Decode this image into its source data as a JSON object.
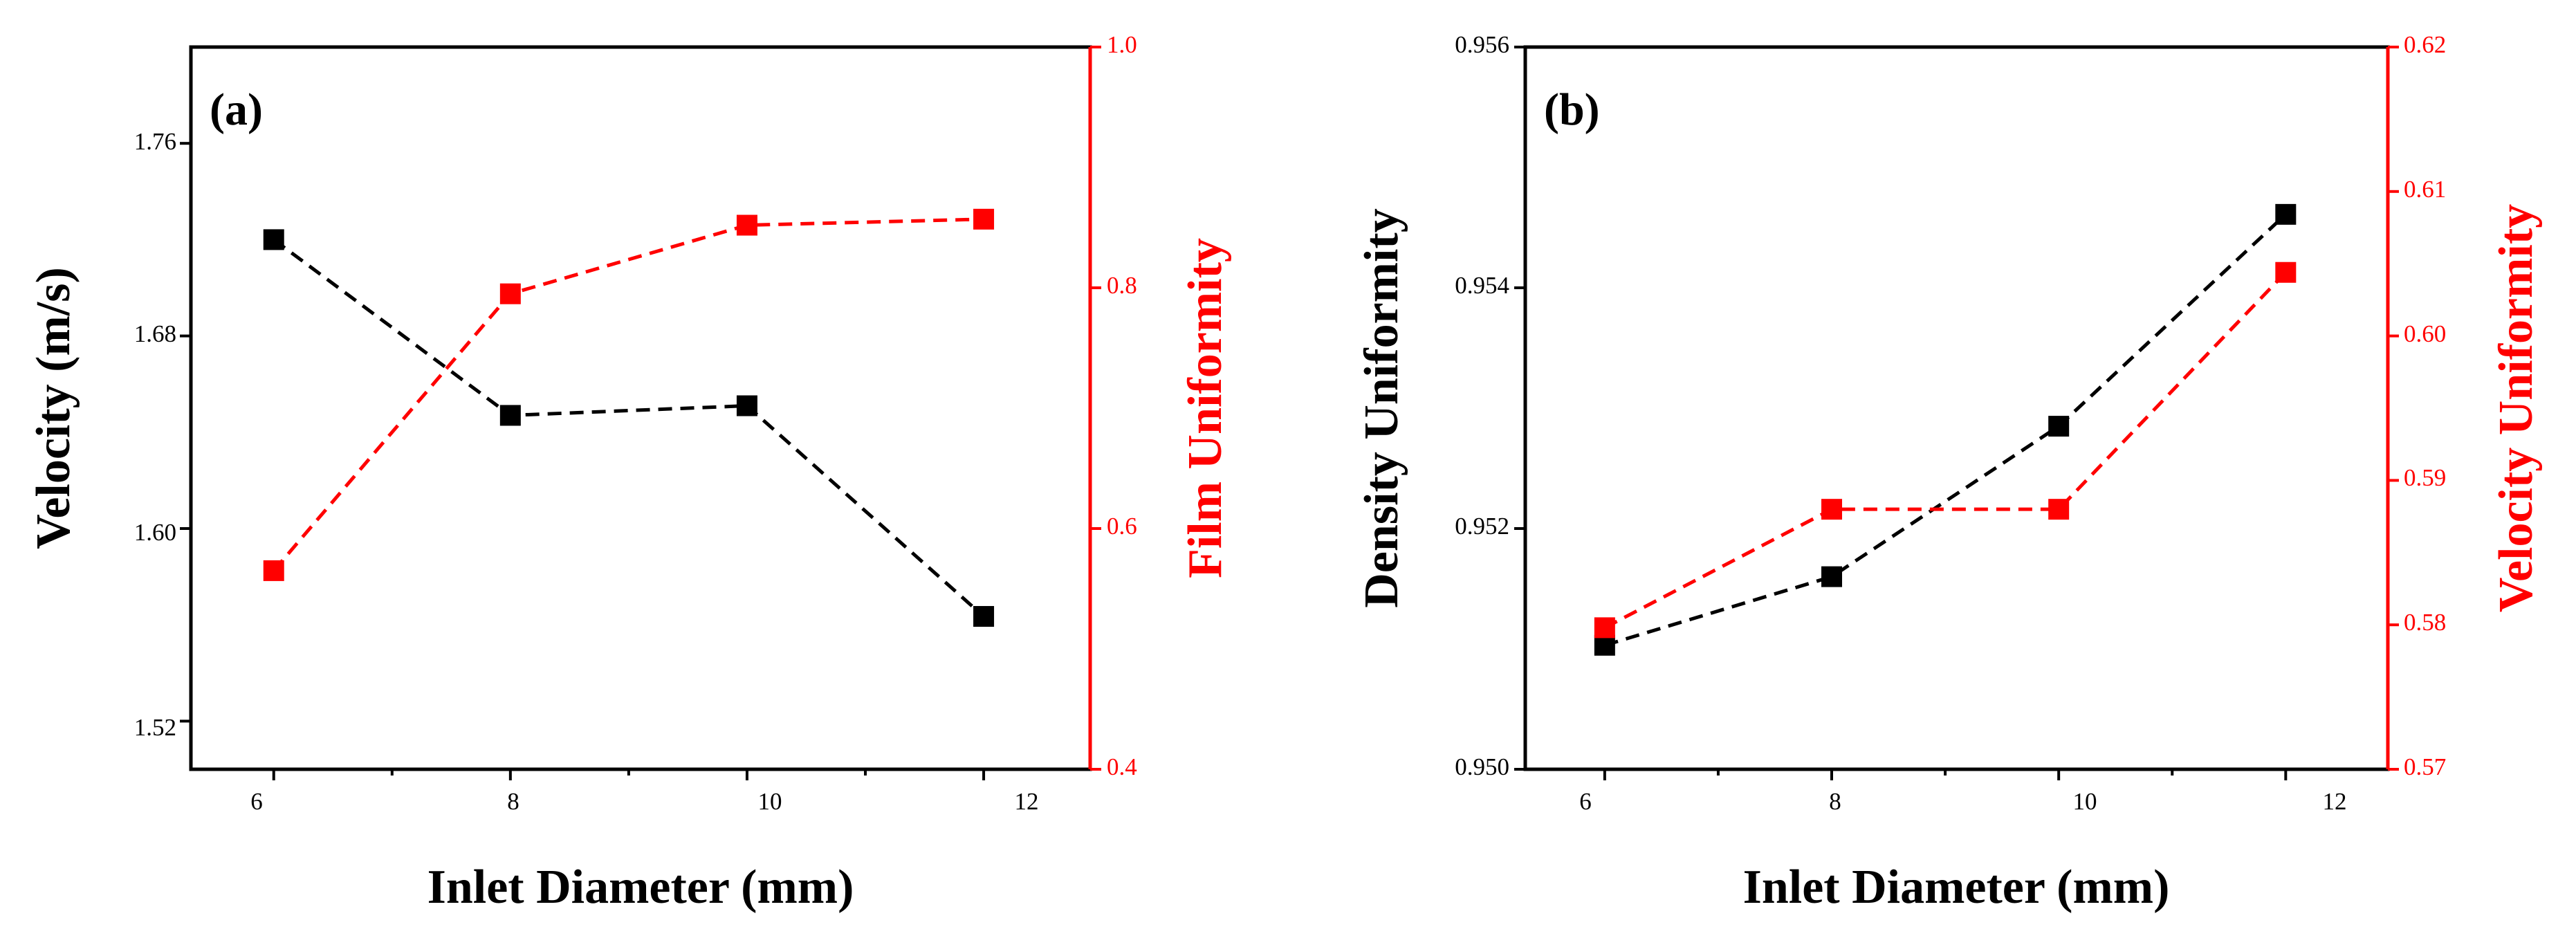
{
  "colors": {
    "primary": "#000000",
    "secondary": "#ff0000"
  },
  "chart_data": [
    {
      "type": "line",
      "panel_label": "(a)",
      "xlabel": "Inlet Diameter (mm)",
      "ylabel": "Velocity (m/s)",
      "y2label": "Film Uniformity",
      "xlim": [
        5.3,
        12.9
      ],
      "ylim": [
        1.5,
        1.8
      ],
      "y2lim": [
        0.4,
        1.0
      ],
      "xticks": [
        "6",
        "8",
        "10",
        "12"
      ],
      "yticks": [
        "1.52",
        "1.60",
        "1.68",
        "1.76"
      ],
      "y2ticks": [
        "0.4",
        "0.6",
        "0.8",
        "1.0"
      ],
      "x": [
        6,
        8,
        10,
        12
      ],
      "series": [
        {
          "name": "Velocity",
          "axis": "left",
          "color": "#000000",
          "values": [
            1.72,
            1.647,
            1.651,
            1.5635
          ]
        },
        {
          "name": "Film Uniformity",
          "axis": "right",
          "color": "#ff0000",
          "values": [
            0.565,
            0.795,
            0.852,
            0.857
          ]
        }
      ]
    },
    {
      "type": "line",
      "panel_label": "(b)",
      "xlabel": "Inlet Diameter (mm)",
      "ylabel": "Density Uniformity",
      "y2label": "Velocity Uniformity",
      "xlim": [
        5.3,
        12.9
      ],
      "ylim": [
        0.95,
        0.956
      ],
      "y2lim": [
        0.57,
        0.62
      ],
      "xticks": [
        "6",
        "8",
        "10",
        "12"
      ],
      "yticks": [
        "0.950",
        "0.952",
        "0.954",
        "0.956"
      ],
      "y2ticks": [
        "0.57",
        "0.58",
        "0.59",
        "0.60",
        "0.61",
        "0.62"
      ],
      "x": [
        6,
        8,
        10,
        12
      ],
      "series": [
        {
          "name": "Density Uniformity",
          "axis": "left",
          "color": "#000000",
          "values": [
            0.95103,
            0.9516,
            0.95285,
            0.95461
          ]
        },
        {
          "name": "Velocity Uniformity",
          "axis": "right",
          "color": "#ff0000",
          "values": [
            0.5798,
            0.588,
            0.588,
            0.6044
          ]
        }
      ]
    }
  ]
}
